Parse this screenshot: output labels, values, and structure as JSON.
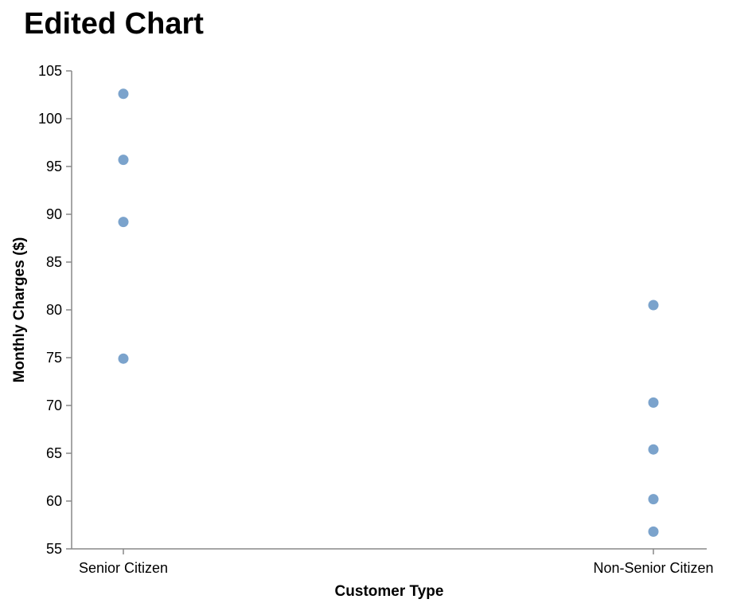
{
  "chart_data": {
    "type": "scatter",
    "title": "Edited Chart",
    "xlabel": "Customer Type",
    "ylabel": "Monthly Charges ($)",
    "categories": [
      "Senior Citizen",
      "Non-Senior Citizen"
    ],
    "ylim": [
      55,
      105
    ],
    "yticks": [
      55,
      60,
      65,
      70,
      75,
      80,
      85,
      90,
      95,
      100,
      105
    ],
    "grid": false,
    "points": [
      {
        "x": "Senior Citizen",
        "y": 102.6
      },
      {
        "x": "Senior Citizen",
        "y": 95.7
      },
      {
        "x": "Senior Citizen",
        "y": 89.2
      },
      {
        "x": "Senior Citizen",
        "y": 74.9
      },
      {
        "x": "Non-Senior Citizen",
        "y": 80.5
      },
      {
        "x": "Non-Senior Citizen",
        "y": 70.3
      },
      {
        "x": "Non-Senior Citizen",
        "y": 65.4
      },
      {
        "x": "Non-Senior Citizen",
        "y": 60.2
      },
      {
        "x": "Non-Senior Citizen",
        "y": 56.8
      }
    ],
    "point_color": "#7ba3cc"
  }
}
